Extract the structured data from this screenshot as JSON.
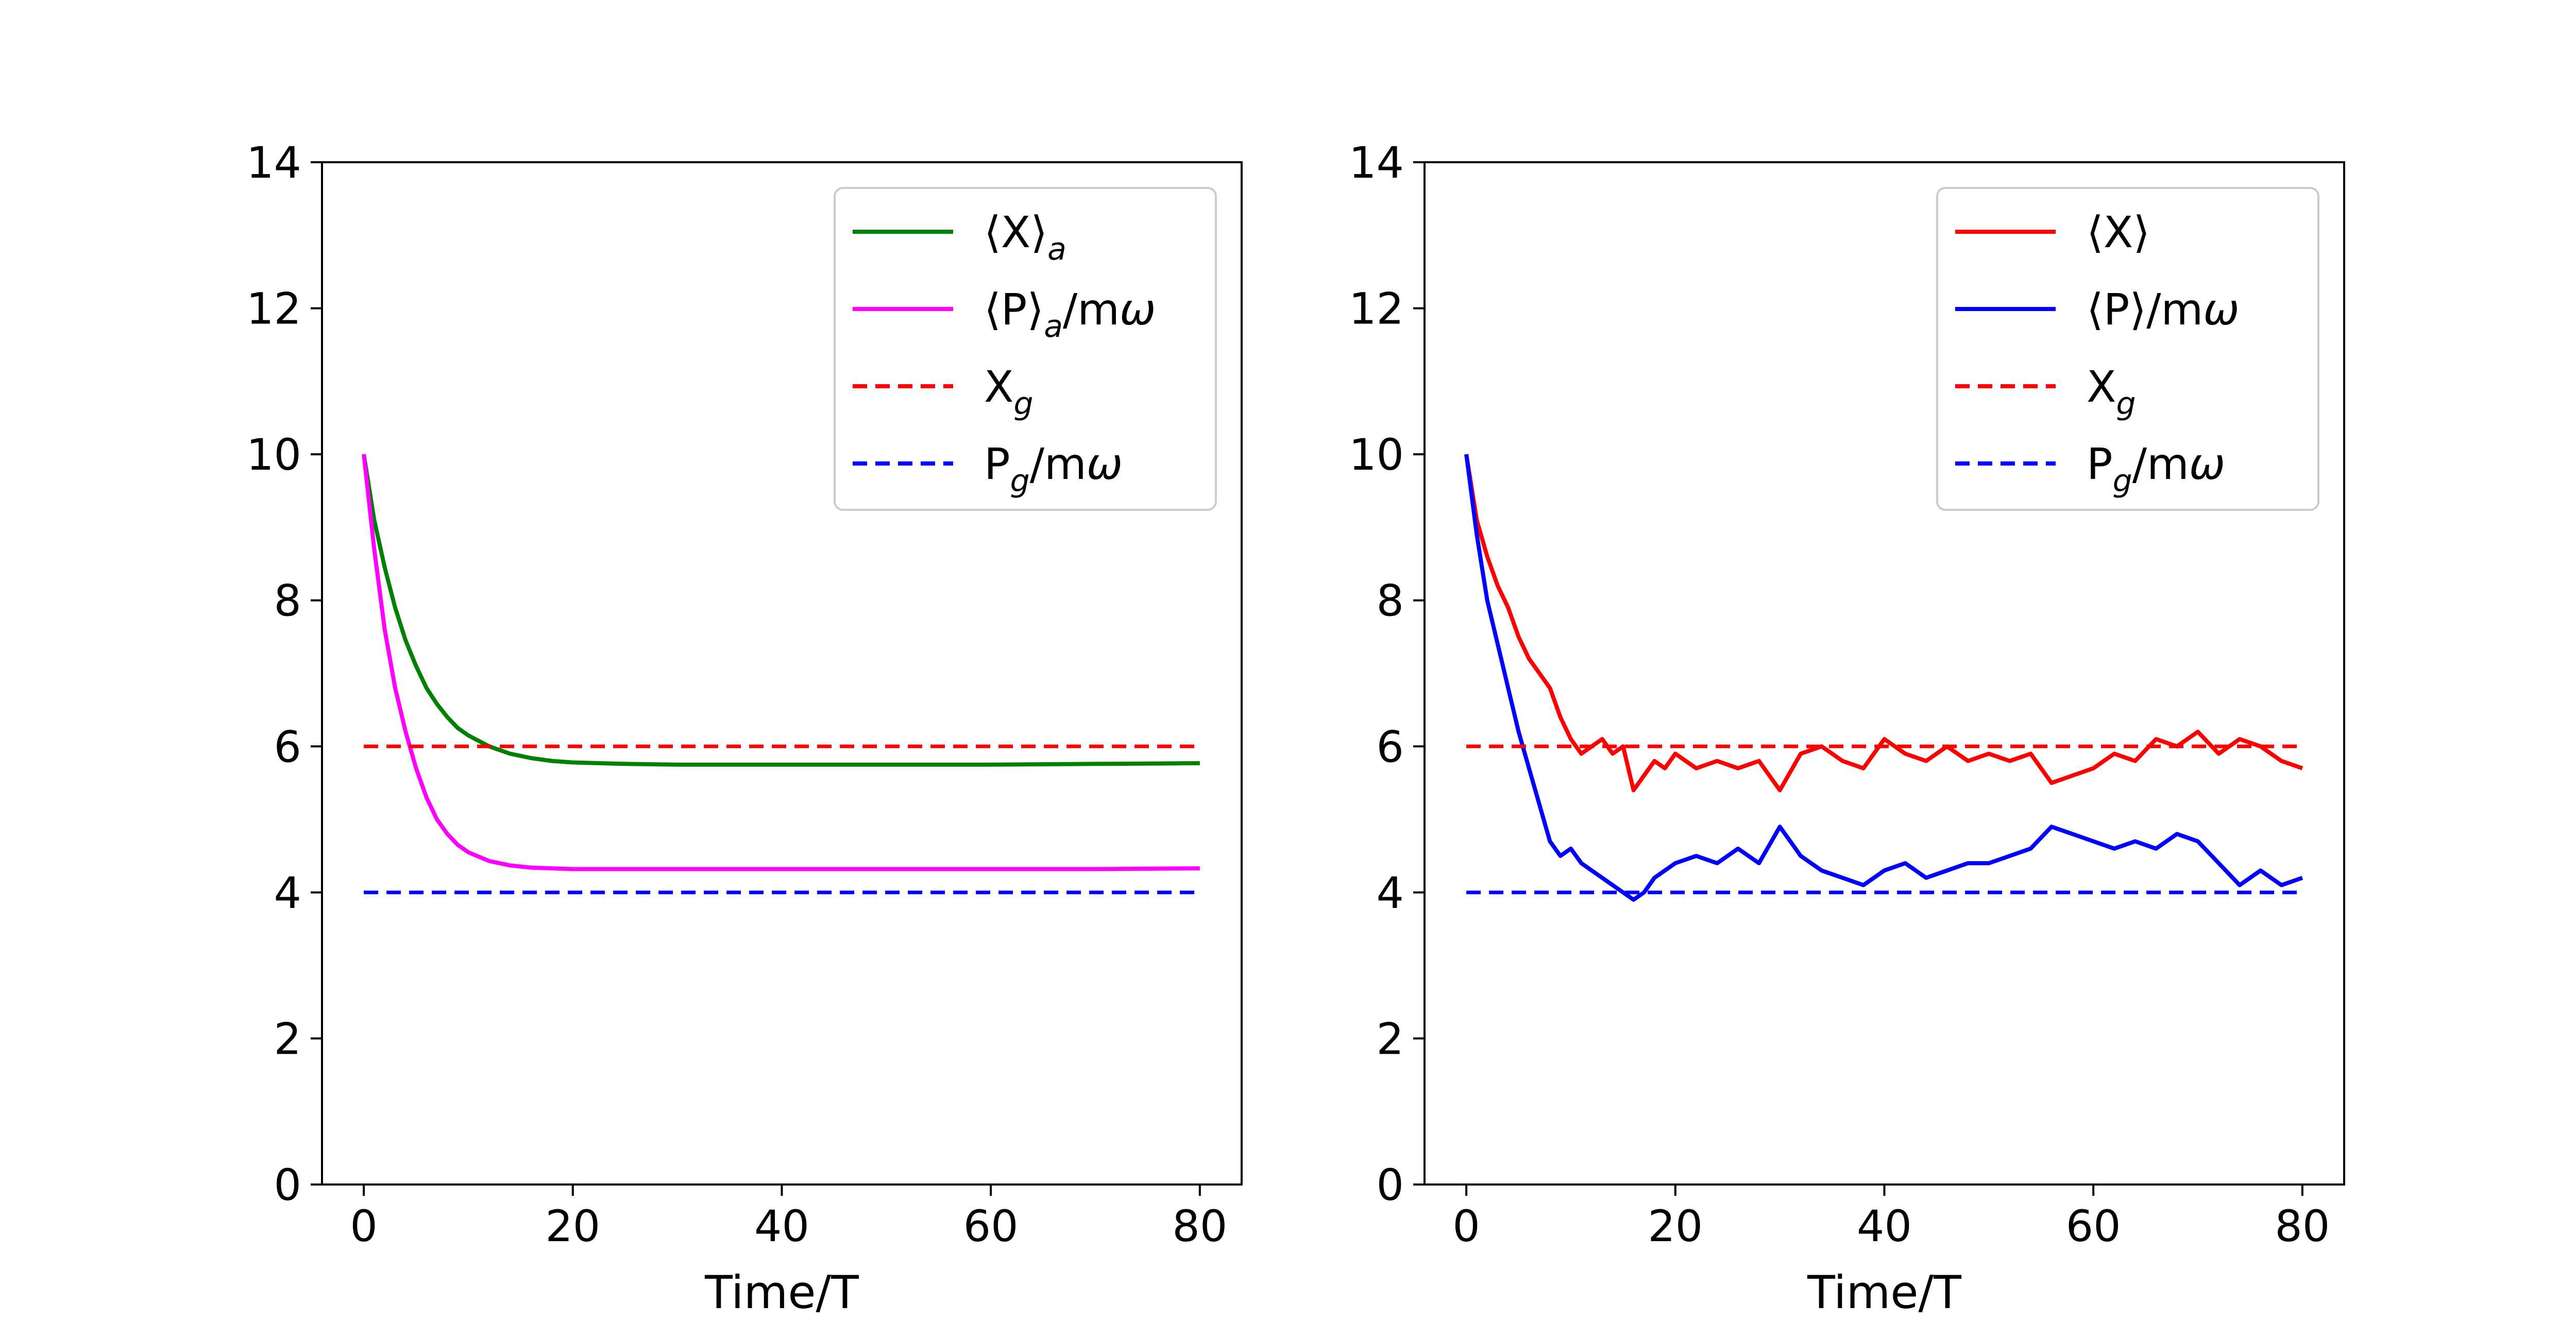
{
  "chart_data": [
    {
      "type": "line",
      "xlabel": "Time/T",
      "ylabel": "",
      "xlim": [
        -4,
        84
      ],
      "ylim": [
        0,
        14
      ],
      "xticks": [
        "0",
        "20",
        "40",
        "60",
        "80"
      ],
      "yticks": [
        "0",
        "2",
        "4",
        "6",
        "8",
        "10",
        "12",
        "14"
      ],
      "grid": false,
      "legend_position": "top-right",
      "series": [
        {
          "name": "⟨X⟩_a",
          "style": "solid",
          "color": "#008000",
          "x": [
            0,
            1,
            2,
            3,
            4,
            5,
            6,
            7,
            8,
            9,
            10,
            12,
            14,
            16,
            18,
            20,
            25,
            30,
            40,
            50,
            60,
            70,
            80
          ],
          "y": [
            10,
            9.1,
            8.45,
            7.9,
            7.45,
            7.1,
            6.8,
            6.58,
            6.4,
            6.25,
            6.15,
            6.0,
            5.9,
            5.84,
            5.8,
            5.78,
            5.76,
            5.75,
            5.75,
            5.75,
            5.75,
            5.76,
            5.77
          ]
        },
        {
          "name": "⟨P⟩_a/mω",
          "style": "solid",
          "color": "#ff00ff",
          "x": [
            0,
            1,
            2,
            3,
            4,
            5,
            6,
            7,
            8,
            9,
            10,
            12,
            14,
            16,
            18,
            20,
            25,
            30,
            40,
            50,
            60,
            70,
            80
          ],
          "y": [
            10,
            8.7,
            7.6,
            6.8,
            6.2,
            5.7,
            5.3,
            5.0,
            4.8,
            4.65,
            4.55,
            4.43,
            4.37,
            4.34,
            4.33,
            4.32,
            4.32,
            4.32,
            4.32,
            4.32,
            4.32,
            4.32,
            4.33
          ]
        },
        {
          "name": "X_g",
          "style": "dashed",
          "color": "#ff0000",
          "x": [
            0,
            80
          ],
          "y": [
            6,
            6
          ]
        },
        {
          "name": "P_g/mω",
          "style": "dashed",
          "color": "#0000ff",
          "x": [
            0,
            80
          ],
          "y": [
            4,
            4
          ]
        }
      ]
    },
    {
      "type": "line",
      "xlabel": "Time/T",
      "ylabel": "",
      "xlim": [
        -4,
        84
      ],
      "ylim": [
        0,
        14
      ],
      "xticks": [
        "0",
        "20",
        "40",
        "60",
        "80"
      ],
      "yticks": [
        "0",
        "2",
        "4",
        "6",
        "8",
        "10",
        "12",
        "14"
      ],
      "grid": false,
      "legend_position": "top-right",
      "series": [
        {
          "name": "⟨X⟩",
          "style": "solid",
          "color": "#ff0000",
          "x": [
            0,
            1,
            2,
            3,
            4,
            5,
            6,
            7,
            8,
            9,
            10,
            11,
            12,
            13,
            14,
            15,
            16,
            17,
            18,
            19,
            20,
            22,
            24,
            26,
            28,
            30,
            32,
            34,
            36,
            38,
            40,
            42,
            44,
            46,
            48,
            50,
            52,
            54,
            56,
            58,
            60,
            62,
            64,
            66,
            68,
            70,
            72,
            74,
            76,
            78,
            80
          ],
          "y": [
            10,
            9.1,
            8.6,
            8.2,
            7.9,
            7.5,
            7.2,
            7.0,
            6.8,
            6.4,
            6.1,
            5.9,
            6.0,
            6.1,
            5.9,
            6.0,
            5.4,
            5.6,
            5.8,
            5.7,
            5.9,
            5.7,
            5.8,
            5.7,
            5.8,
            5.4,
            5.9,
            6.0,
            5.8,
            5.7,
            6.1,
            5.9,
            5.8,
            6.0,
            5.8,
            5.9,
            5.8,
            5.9,
            5.5,
            5.6,
            5.7,
            5.9,
            5.8,
            6.1,
            6.0,
            6.2,
            5.9,
            6.1,
            6.0,
            5.8,
            5.7
          ]
        },
        {
          "name": "⟨P⟩/mω",
          "style": "solid",
          "color": "#0000ff",
          "x": [
            0,
            1,
            2,
            3,
            4,
            5,
            6,
            7,
            8,
            9,
            10,
            11,
            12,
            13,
            14,
            15,
            16,
            17,
            18,
            19,
            20,
            22,
            24,
            26,
            28,
            30,
            32,
            34,
            36,
            38,
            40,
            42,
            44,
            46,
            48,
            50,
            52,
            54,
            56,
            58,
            60,
            62,
            64,
            66,
            68,
            70,
            72,
            74,
            76,
            78,
            80
          ],
          "y": [
            10,
            8.9,
            8.0,
            7.4,
            6.8,
            6.2,
            5.7,
            5.2,
            4.7,
            4.5,
            4.6,
            4.4,
            4.3,
            4.2,
            4.1,
            4.0,
            3.9,
            4.0,
            4.2,
            4.3,
            4.4,
            4.5,
            4.4,
            4.6,
            4.4,
            4.9,
            4.5,
            4.3,
            4.2,
            4.1,
            4.3,
            4.4,
            4.2,
            4.3,
            4.4,
            4.4,
            4.5,
            4.6,
            4.9,
            4.8,
            4.7,
            4.6,
            4.7,
            4.6,
            4.8,
            4.7,
            4.4,
            4.1,
            4.3,
            4.1,
            4.2
          ]
        },
        {
          "name": "X_g",
          "style": "dashed",
          "color": "#ff0000",
          "x": [
            0,
            80
          ],
          "y": [
            6,
            6
          ]
        },
        {
          "name": "P_g/mω",
          "style": "dashed",
          "color": "#0000ff",
          "x": [
            0,
            80
          ],
          "y": [
            4,
            4
          ]
        }
      ]
    }
  ]
}
